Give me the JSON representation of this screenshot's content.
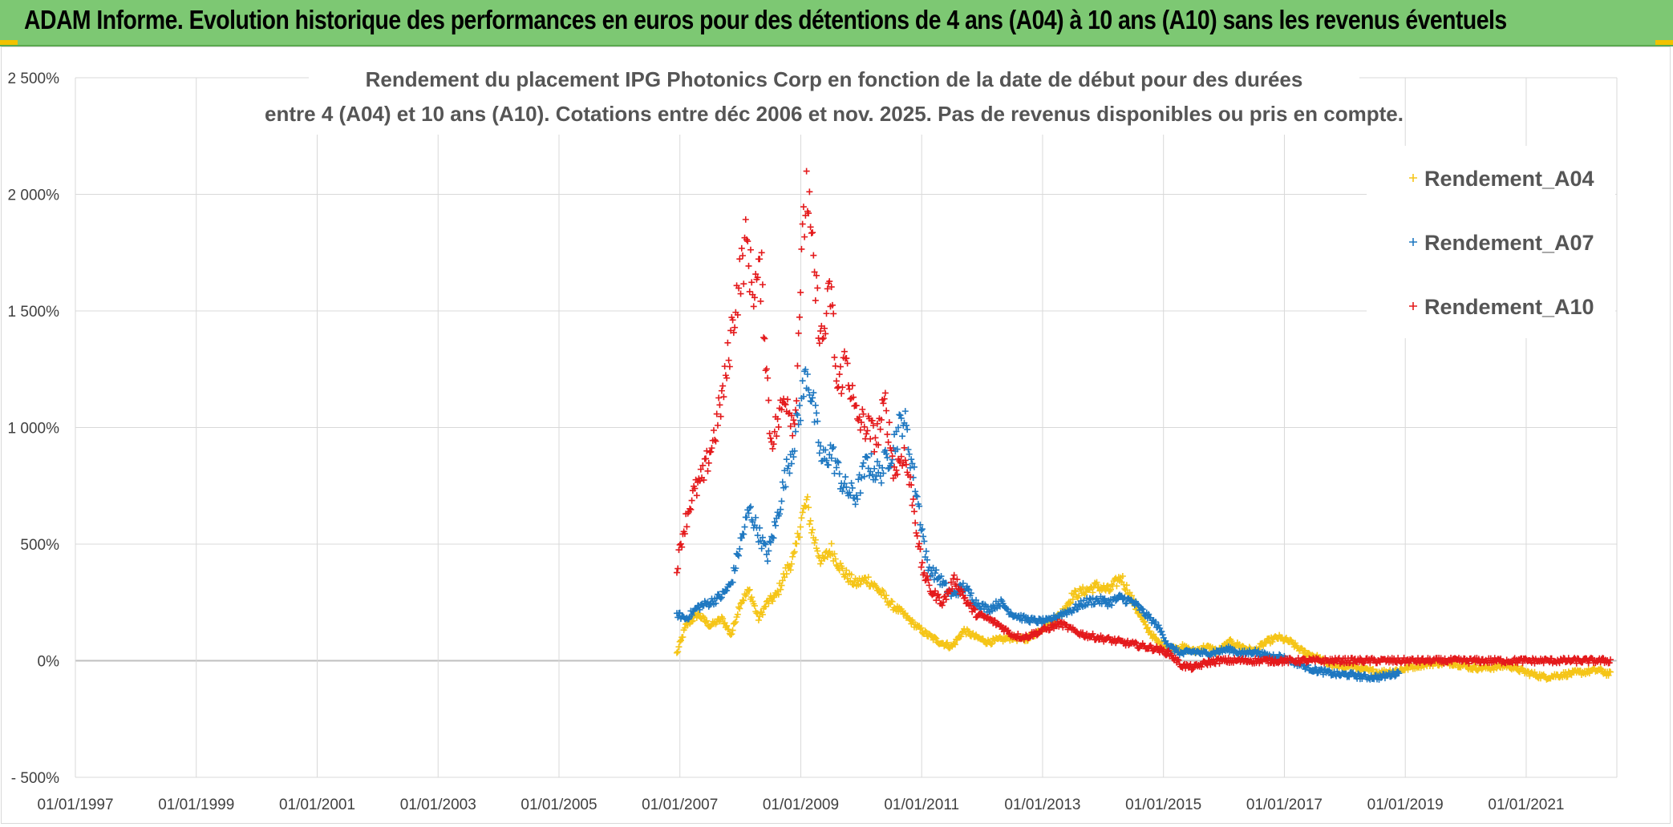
{
  "banner": {
    "title": "ADAM Informe. Evolution historique des performances en euros pour des détentions de 4 ans (A04) à 10 ans (A10) sans les revenus éventuels",
    "background": "#7dc873"
  },
  "chart_data": {
    "type": "scatter",
    "title_line1": "Rendement du placement IPG Photonics Corp en fonction de la date de début pour des durées",
    "title_line2": "entre 4 (A04) et 10 ans (A10). Cotations entre déc 2006 et nov. 2025. Pas de revenus disponibles ou pris en compte.",
    "xlabel": "",
    "ylabel": "",
    "x_range": [
      1997.0,
      2022.5
    ],
    "ylim": [
      -500,
      2500
    ],
    "grid": true,
    "legend_position": "top-right",
    "y_ticks": [
      {
        "value": 2500,
        "label": "2 500%"
      },
      {
        "value": 2000,
        "label": "2 000%"
      },
      {
        "value": 1500,
        "label": "1 500%"
      },
      {
        "value": 1000,
        "label": "1 000%"
      },
      {
        "value": 500,
        "label": "500%"
      },
      {
        "value": 0,
        "label": "0%"
      },
      {
        "value": -500,
        "label": "- 500%"
      }
    ],
    "x_ticks": [
      {
        "value": 1997,
        "label": "01/01/1997"
      },
      {
        "value": 1999,
        "label": "01/01/1999"
      },
      {
        "value": 2001,
        "label": "01/01/2001"
      },
      {
        "value": 2003,
        "label": "01/01/2003"
      },
      {
        "value": 2005,
        "label": "01/01/2005"
      },
      {
        "value": 2007,
        "label": "01/01/2007"
      },
      {
        "value": 2009,
        "label": "01/01/2009"
      },
      {
        "value": 2011,
        "label": "01/01/2011"
      },
      {
        "value": 2013,
        "label": "01/01/2013"
      },
      {
        "value": 2015,
        "label": "01/01/2015"
      },
      {
        "value": 2017,
        "label": "01/01/2017"
      },
      {
        "value": 2019,
        "label": "01/01/2019"
      },
      {
        "value": 2021,
        "label": "01/01/2021"
      }
    ],
    "series": [
      {
        "name": "Rendement_A04",
        "color": "#f5c518",
        "x": [
          2006.95,
          2007.1,
          2007.3,
          2007.5,
          2007.7,
          2007.85,
          2008.0,
          2008.15,
          2008.3,
          2008.45,
          2008.6,
          2008.75,
          2008.9,
          2009.0,
          2009.1,
          2009.2,
          2009.35,
          2009.5,
          2009.7,
          2009.9,
          2010.1,
          2010.3,
          2010.5,
          2010.7,
          2010.9,
          2011.1,
          2011.3,
          2011.5,
          2011.7,
          2011.9,
          2012.1,
          2012.3,
          2012.5,
          2012.7,
          2012.9,
          2013.1,
          2013.3,
          2013.5,
          2013.7,
          2013.9,
          2014.1,
          2014.3,
          2014.5,
          2014.7,
          2014.9,
          2015.1,
          2015.3,
          2015.5,
          2015.7,
          2015.9,
          2016.1,
          2016.3,
          2016.5,
          2016.7,
          2016.9,
          2017.1,
          2017.3,
          2017.5,
          2017.7,
          2017.9,
          2018.1,
          2018.3,
          2018.6,
          2018.9,
          2019.2,
          2019.5,
          2019.8,
          2020.1,
          2020.4,
          2020.7,
          2021.0,
          2021.3,
          2021.6,
          2021.9,
          2022.2,
          2022.4
        ],
        "values": [
          30,
          150,
          200,
          150,
          180,
          110,
          250,
          300,
          180,
          250,
          280,
          380,
          450,
          600,
          680,
          540,
          420,
          480,
          380,
          330,
          350,
          300,
          240,
          200,
          150,
          110,
          80,
          60,
          130,
          100,
          80,
          90,
          100,
          90,
          120,
          160,
          200,
          280,
          300,
          320,
          300,
          360,
          250,
          150,
          80,
          50,
          60,
          40,
          60,
          40,
          80,
          60,
          40,
          80,
          100,
          80,
          40,
          20,
          -10,
          -30,
          -20,
          -40,
          -50,
          -40,
          -20,
          -10,
          -10,
          -30,
          -30,
          -20,
          -50,
          -70,
          -60,
          -50,
          -40,
          -60
        ]
      },
      {
        "name": "Rendement_A07",
        "color": "#1f78c1",
        "x": [
          2006.95,
          2007.1,
          2007.3,
          2007.5,
          2007.7,
          2007.85,
          2008.0,
          2008.15,
          2008.3,
          2008.45,
          2008.6,
          2008.75,
          2008.9,
          2009.0,
          2009.1,
          2009.2,
          2009.35,
          2009.5,
          2009.7,
          2009.9,
          2010.1,
          2010.3,
          2010.5,
          2010.7,
          2010.9,
          2011.1,
          2011.3,
          2011.5,
          2011.7,
          2011.9,
          2012.1,
          2012.3,
          2012.5,
          2012.7,
          2012.9,
          2013.1,
          2013.3,
          2013.5,
          2013.7,
          2013.9,
          2014.1,
          2014.3,
          2014.5,
          2014.7,
          2014.9,
          2015.1,
          2015.3,
          2015.5,
          2015.7,
          2015.9,
          2016.1,
          2016.3,
          2016.5,
          2016.7,
          2016.9,
          2017.1,
          2017.3,
          2017.5,
          2017.7,
          2017.9,
          2018.1,
          2018.3,
          2018.6,
          2018.9
        ],
        "values": [
          200,
          180,
          230,
          250,
          280,
          330,
          500,
          650,
          550,
          450,
          600,
          800,
          950,
          1100,
          1250,
          1100,
          850,
          900,
          750,
          700,
          850,
          800,
          900,
          1050,
          750,
          400,
          350,
          280,
          320,
          250,
          220,
          250,
          200,
          180,
          170,
          170,
          200,
          220,
          250,
          260,
          250,
          270,
          250,
          200,
          150,
          60,
          30,
          40,
          30,
          40,
          50,
          30,
          40,
          20,
          20,
          0,
          -20,
          -40,
          -50,
          -60,
          -60,
          -70,
          -70,
          -50
        ]
      },
      {
        "name": "Rendement_A10",
        "color": "#e41a1c",
        "x": [
          2006.95,
          2007.05,
          2007.2,
          2007.4,
          2007.6,
          2007.75,
          2007.9,
          2008.0,
          2008.1,
          2008.2,
          2008.35,
          2008.5,
          2008.6,
          2008.75,
          2008.9,
          2009.0,
          2009.1,
          2009.2,
          2009.35,
          2009.5,
          2009.6,
          2009.75,
          2009.9,
          2010.1,
          2010.25,
          2010.4,
          2010.55,
          2010.7,
          2010.85,
          2011.0,
          2011.15,
          2011.35,
          2011.55,
          2011.75,
          2011.9,
          2012.1,
          2012.3,
          2012.5,
          2012.7,
          2012.9,
          2013.1,
          2013.3,
          2013.5,
          2013.7,
          2013.9,
          2014.1,
          2014.3,
          2014.5,
          2014.7,
          2014.9,
          2015.1,
          2015.3,
          2015.5,
          2015.7,
          2015.9,
          2016.2,
          2016.6,
          2017.0,
          2017.5,
          2018.0,
          2018.5,
          2019.0,
          2019.5,
          2020.0,
          2020.5,
          2021.0,
          2021.5,
          2022.0,
          2022.4
        ],
        "values": [
          400,
          550,
          700,
          800,
          1000,
          1200,
          1500,
          1650,
          1800,
          1600,
          1650,
          950,
          1000,
          1150,
          1000,
          1650,
          2050,
          1700,
          1350,
          1600,
          1150,
          1300,
          1050,
          1000,
          950,
          1100,
          800,
          900,
          700,
          400,
          300,
          250,
          350,
          250,
          200,
          180,
          150,
          110,
          100,
          120,
          140,
          160,
          130,
          110,
          100,
          90,
          80,
          70,
          60,
          50,
          30,
          -20,
          -30,
          -10,
          0,
          0,
          0,
          0,
          0,
          0,
          0,
          0,
          0,
          0,
          0,
          0,
          0,
          0,
          0
        ]
      }
    ]
  }
}
